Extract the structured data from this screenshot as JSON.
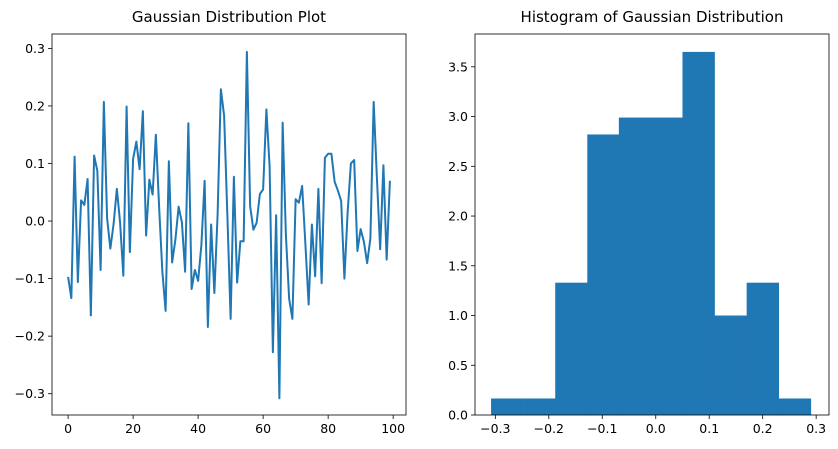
{
  "figure": {
    "background": "#ffffff",
    "line_color": "#1f77b4",
    "bar_color": "#1f77b4"
  },
  "chart_data": [
    {
      "type": "line",
      "title": "Gaussian Distribution Plot",
      "xlabel": "",
      "ylabel": "",
      "xlim": [
        -4.95,
        103.95
      ],
      "ylim": [
        -0.337,
        0.325
      ],
      "xticks": [
        0,
        20,
        40,
        60,
        80,
        100
      ],
      "xtick_labels": [
        "0",
        "20",
        "40",
        "60",
        "80",
        "100"
      ],
      "yticks": [
        -0.3,
        -0.2,
        -0.1,
        0.0,
        0.1,
        0.2,
        0.3
      ],
      "ytick_labels": [
        "−0.3",
        "−0.2",
        "−0.1",
        "0.0",
        "0.1",
        "0.2",
        "0.3"
      ],
      "grid": false,
      "series": [
        {
          "x": [
            0,
            1,
            2,
            3,
            4,
            5,
            6,
            7,
            8,
            9,
            10,
            11,
            12,
            13,
            14,
            15,
            16,
            17,
            18,
            19,
            20,
            21,
            22,
            23,
            24,
            25,
            26,
            27,
            28,
            29,
            30,
            31,
            32,
            33,
            34,
            35,
            36,
            37,
            38,
            39,
            40,
            41,
            42,
            43,
            44,
            45,
            46,
            47,
            48,
            49,
            50,
            51,
            52,
            53,
            54,
            55,
            56,
            57,
            58,
            59,
            60,
            61,
            62,
            63,
            64,
            65,
            66,
            67,
            68,
            69,
            70,
            71,
            72,
            73,
            74,
            75,
            76,
            77,
            78,
            79,
            80,
            81,
            82,
            83,
            84,
            85,
            86,
            87,
            88,
            89,
            90,
            91,
            92,
            93,
            94,
            95,
            96,
            97,
            98,
            99
          ],
          "y": [
            -0.097,
            -0.134,
            0.112,
            -0.106,
            0.036,
            0.028,
            0.073,
            -0.164,
            0.114,
            0.087,
            -0.085,
            0.207,
            0.005,
            -0.048,
            -0.005,
            0.056,
            -0.003,
            -0.095,
            0.199,
            -0.054,
            0.108,
            0.138,
            0.09,
            0.191,
            -0.025,
            0.072,
            0.046,
            0.15,
            0.025,
            -0.088,
            -0.156,
            0.104,
            -0.072,
            -0.033,
            0.025,
            -0.002,
            -0.088,
            0.17,
            -0.118,
            -0.085,
            -0.104,
            -0.042,
            0.07,
            -0.184,
            -0.006,
            -0.125,
            0.012,
            0.229,
            0.183,
            0.01,
            -0.17,
            0.077,
            -0.107,
            -0.035,
            -0.035,
            0.294,
            0.026,
            -0.015,
            -0.003,
            0.047,
            0.055,
            0.194,
            0.094,
            -0.228,
            0.01,
            -0.308,
            0.171,
            -0.024,
            -0.135,
            -0.17,
            0.038,
            0.032,
            0.061,
            -0.04,
            -0.145,
            -0.006,
            -0.096,
            0.056,
            -0.108,
            0.11,
            0.117,
            0.117,
            0.068,
            0.053,
            0.035,
            -0.1,
            0.016,
            0.1,
            0.106,
            -0.052,
            -0.014,
            -0.036,
            -0.073,
            -0.03,
            0.207,
            0.075,
            -0.049,
            0.097,
            -0.067,
            0.07
          ]
        }
      ]
    },
    {
      "type": "bar",
      "title": "Histogram of Gaussian Distribution",
      "xlabel": "",
      "ylabel": "",
      "xlim": [
        -0.338,
        0.324
      ],
      "ylim": [
        0,
        3.83
      ],
      "xticks": [
        -0.3,
        -0.2,
        -0.1,
        0.0,
        0.1,
        0.2,
        0.3
      ],
      "xtick_labels": [
        "−0.3",
        "−0.2",
        "−0.1",
        "0.0",
        "0.1",
        "0.2",
        "0.3"
      ],
      "yticks": [
        0.0,
        0.5,
        1.0,
        1.5,
        2.0,
        2.5,
        3.0,
        3.5
      ],
      "ytick_labels": [
        "0.0",
        "0.5",
        "1.0",
        "1.5",
        "2.0",
        "2.5",
        "3.0",
        "3.5"
      ],
      "grid": false,
      "bin_edges": [
        -0.308,
        -0.248,
        -0.188,
        -0.128,
        -0.069,
        -0.009,
        0.05,
        0.11,
        0.17,
        0.23,
        0.29
      ],
      "values": [
        0.166,
        0.166,
        1.33,
        2.82,
        2.99,
        2.99,
        3.65,
        1.0,
        1.33,
        0.166
      ]
    }
  ]
}
